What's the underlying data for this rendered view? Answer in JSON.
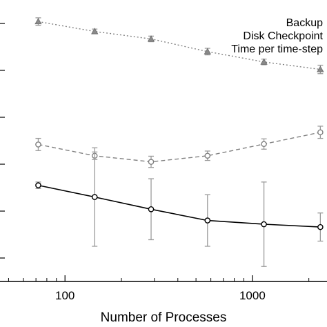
{
  "chart_data": {
    "type": "line",
    "xlabel": "Number of Processes",
    "xscale": "log",
    "xlim": [
      45,
      2500
    ],
    "ylim": [
      0,
      6
    ],
    "x_ticks": [
      {
        "value": 100,
        "label": "100"
      },
      {
        "value": 1000,
        "label": "1000"
      }
    ],
    "y_ticks": [
      0.5,
      1.5,
      2.5,
      3.5,
      4.5,
      5.5
    ],
    "legend": {
      "position": "top-right",
      "entries": [
        "Backup",
        "Disk Checkpoint",
        "Time per time-step"
      ]
    },
    "series": [
      {
        "name": "Time per time-step",
        "color": "#808080",
        "line_style": "dotted",
        "marker": "triangle",
        "x": [
          72,
          144,
          288,
          576,
          1152,
          2304
        ],
        "y": [
          5.54,
          5.33,
          5.17,
          4.9,
          4.68,
          4.52
        ],
        "err": [
          0.08,
          0.05,
          0.06,
          0.07,
          0.06,
          0.09
        ]
      },
      {
        "name": "Disk Checkpoint",
        "color": "#808080",
        "line_style": "dashed",
        "marker": "circle",
        "x": [
          72,
          144,
          288,
          576,
          1152,
          2304
        ],
        "y": [
          2.92,
          2.68,
          2.55,
          2.68,
          2.93,
          3.18
        ],
        "err": [
          0.13,
          0.08,
          0.12,
          0.1,
          0.11,
          0.13
        ]
      },
      {
        "name": "Backup",
        "color": "#000000",
        "line_style": "solid",
        "marker": "circle",
        "x": [
          72,
          144,
          288,
          576,
          1152,
          2304
        ],
        "y": [
          2.05,
          1.8,
          1.54,
          1.3,
          1.22,
          1.16
        ],
        "err": [
          0.07,
          1.05,
          0.65,
          0.55,
          0.9,
          0.3
        ]
      }
    ]
  }
}
